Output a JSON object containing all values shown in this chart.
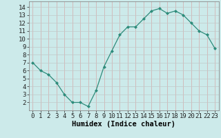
{
  "x": [
    0,
    1,
    2,
    3,
    4,
    5,
    6,
    7,
    8,
    9,
    10,
    11,
    12,
    13,
    14,
    15,
    16,
    17,
    18,
    19,
    20,
    21,
    22,
    23
  ],
  "y": [
    7.0,
    6.0,
    5.5,
    4.5,
    3.0,
    2.0,
    2.0,
    1.5,
    3.5,
    6.5,
    8.5,
    10.5,
    11.5,
    11.5,
    12.5,
    13.5,
    13.8,
    13.2,
    13.5,
    13.0,
    12.0,
    11.0,
    10.5,
    8.8
  ],
  "line_color": "#2d8b7a",
  "marker_color": "#2d8b7a",
  "bg_color": "#cceaea",
  "grid_color_h": "#c8b8b8",
  "grid_color_v": "#c8b8b8",
  "xlabel": "Humidex (Indice chaleur)",
  "xlim": [
    -0.5,
    23.5
  ],
  "ylim": [
    1.0,
    14.7
  ],
  "xtick_labels": [
    "0",
    "1",
    "2",
    "3",
    "4",
    "5",
    "6",
    "7",
    "8",
    "9",
    "10",
    "11",
    "12",
    "13",
    "14",
    "15",
    "16",
    "17",
    "18",
    "19",
    "20",
    "21",
    "22",
    "23"
  ],
  "ytick_values": [
    2,
    3,
    4,
    5,
    6,
    7,
    8,
    9,
    10,
    11,
    12,
    13,
    14
  ],
  "tick_fontsize": 6.5,
  "xlabel_fontsize": 7.5
}
